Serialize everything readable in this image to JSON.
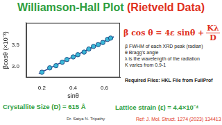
{
  "header": {
    "title": "Williamson-Hall Plot",
    "subtitle": "(Rietveld Data)"
  },
  "formula": {
    "lhs": "β cos θ = 4ε sinθ +",
    "numerator": "Kλ",
    "denominator": "D"
  },
  "notes": [
    "β FWHM of each XRD peak (radian)",
    "θ Bragg's angle",
    "λ is the wavelength of the radiation",
    "K varies from 0.9-1"
  ],
  "required_files": "Required Files: HKL File from FullProf",
  "results": {
    "size": "Crystallite Size (D) = 615 Å",
    "strain": "Lattice strain (ε) = 4.4×10⁻⁴"
  },
  "author": "Dr. Satya N. Tripathy",
  "reference": "Ref: J. Mol. Struct. 1274 (2023) 134413",
  "chart_data": {
    "type": "scatter",
    "x_label": "sinθ",
    "y_label": "βcosθ (×10⁻³)",
    "xlim": [
      0.1,
      0.7
    ],
    "xticks": [
      0.2,
      0.4,
      0.6
    ],
    "ylim": [
      2.75,
      4.0
    ],
    "yticks": [
      {
        "value": 3.0,
        "label": "3.0"
      },
      {
        "value": 3.5,
        "label": "3.5"
      }
    ],
    "grid": false,
    "series": [
      {
        "type": "scatter",
        "color": "#3ab8d8",
        "marker": "circle",
        "x": [
          0.2,
          0.25,
          0.29,
          0.33,
          0.36,
          0.4,
          0.43,
          0.47,
          0.5,
          0.53,
          0.56,
          0.59,
          0.62,
          0.64
        ],
        "values": [
          2.87,
          2.97,
          3.02,
          3.1,
          3.16,
          3.22,
          3.27,
          3.33,
          3.4,
          3.46,
          3.5,
          3.55,
          3.62,
          3.65
        ]
      },
      {
        "type": "line",
        "color": "#1c3f8c",
        "line_style": "solid",
        "x": [
          0.18,
          0.66
        ],
        "values": [
          2.84,
          3.68
        ]
      }
    ]
  }
}
